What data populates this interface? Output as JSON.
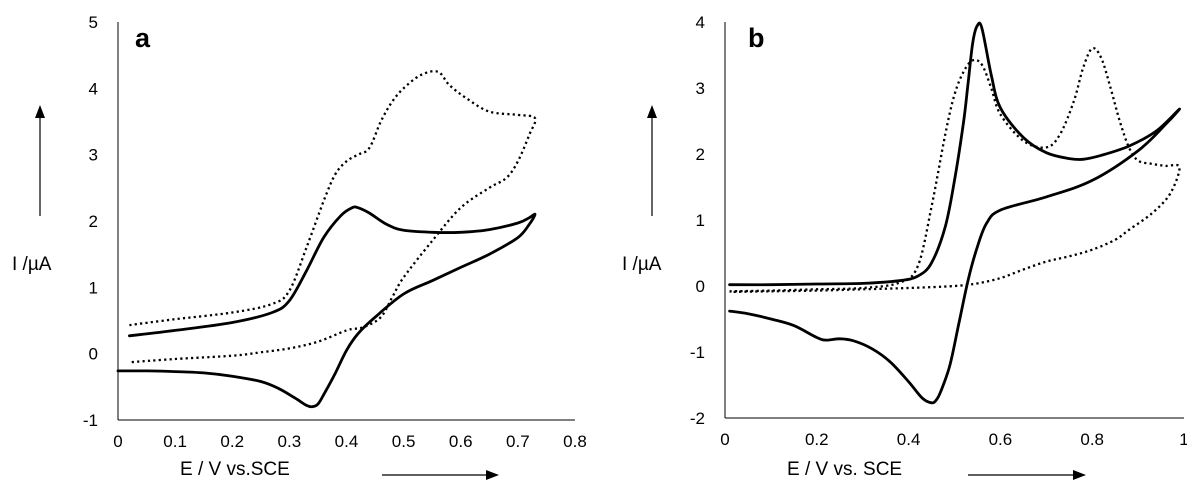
{
  "chart_data": [
    {
      "type": "line",
      "panel_label": "a",
      "xlabel": "E / V vs.SCE",
      "ylabel": "I /µA",
      "xlim": [
        0,
        0.8
      ],
      "ylim": [
        -1,
        5
      ],
      "xticks": [
        0,
        0.1,
        0.2,
        0.3,
        0.4,
        0.5,
        0.6,
        0.7,
        0.8
      ],
      "xtick_labels": [
        "0",
        "0.1",
        "0.2",
        "0.3",
        "0.4",
        "0.5",
        "0.6",
        "0.7",
        "0.8"
      ],
      "yticks": [
        -1,
        0,
        1,
        2,
        3,
        4,
        5
      ],
      "ytick_labels": [
        "-1",
        "0",
        "1",
        "2",
        "3",
        "4",
        "5"
      ],
      "grid": false,
      "legend": false,
      "series": [
        {
          "style": "solid",
          "x": [
            0.02,
            0.1,
            0.2,
            0.27,
            0.3,
            0.33,
            0.36,
            0.39,
            0.41,
            0.42,
            0.44,
            0.47,
            0.5,
            0.55,
            0.6,
            0.65,
            0.7,
            0.72,
            0.73,
            0.72,
            0.7,
            0.65,
            0.6,
            0.55,
            0.5,
            0.45,
            0.42,
            0.4,
            0.38,
            0.36,
            0.35,
            0.34,
            0.33,
            0.31,
            0.28,
            0.25,
            0.2,
            0.15,
            0.1,
            0.05,
            0
          ],
          "y": [
            0.27,
            0.35,
            0.47,
            0.62,
            0.8,
            1.25,
            1.75,
            2.08,
            2.2,
            2.2,
            2.12,
            1.95,
            1.86,
            1.83,
            1.83,
            1.87,
            1.97,
            2.05,
            2.1,
            1.95,
            1.75,
            1.5,
            1.3,
            1.1,
            0.9,
            0.55,
            0.3,
            0.05,
            -0.3,
            -0.62,
            -0.76,
            -0.8,
            -0.78,
            -0.67,
            -0.52,
            -0.42,
            -0.34,
            -0.29,
            -0.27,
            -0.26,
            -0.26
          ]
        },
        {
          "style": "dotted",
          "x": [
            0.02,
            0.1,
            0.2,
            0.27,
            0.3,
            0.33,
            0.36,
            0.38,
            0.4,
            0.42,
            0.44,
            0.46,
            0.48,
            0.5,
            0.53,
            0.56,
            0.58,
            0.61,
            0.65,
            0.7,
            0.73,
            0.72,
            0.7,
            0.68,
            0.65,
            0.6,
            0.55,
            0.5,
            0.48,
            0.46,
            0.43,
            0.4,
            0.35,
            0.3,
            0.25,
            0.2,
            0.1,
            0.02
          ],
          "y": [
            0.43,
            0.52,
            0.62,
            0.75,
            0.95,
            1.6,
            2.3,
            2.7,
            2.9,
            3.0,
            3.1,
            3.5,
            3.8,
            4.0,
            4.2,
            4.25,
            4.05,
            3.85,
            3.65,
            3.6,
            3.55,
            3.3,
            2.9,
            2.65,
            2.5,
            2.2,
            1.7,
            1.15,
            0.85,
            0.55,
            0.4,
            0.35,
            0.18,
            0.08,
            0.02,
            -0.03,
            -0.08,
            -0.13
          ]
        }
      ]
    },
    {
      "type": "line",
      "panel_label": "b",
      "xlabel": "E / V vs. SCE",
      "ylabel": "I /µA",
      "xlim": [
        0,
        1
      ],
      "ylim": [
        -2,
        4
      ],
      "xticks": [
        0,
        0.2,
        0.4,
        0.6,
        0.8,
        1
      ],
      "xtick_labels": [
        "0",
        "0.2",
        "0.4",
        "0.6",
        "0.8",
        "1"
      ],
      "yticks": [
        -2,
        -1,
        0,
        1,
        2,
        3,
        4
      ],
      "ytick_labels": [
        "-2",
        "-1",
        "0",
        "1",
        "2",
        "3",
        "4"
      ],
      "grid": false,
      "legend": false,
      "series": [
        {
          "style": "solid",
          "x": [
            0.01,
            0.1,
            0.2,
            0.3,
            0.38,
            0.42,
            0.45,
            0.48,
            0.5,
            0.52,
            0.53,
            0.54,
            0.55,
            0.56,
            0.58,
            0.6,
            0.65,
            0.7,
            0.75,
            0.78,
            0.82,
            0.88,
            0.94,
            0.99,
            0.96,
            0.9,
            0.8,
            0.7,
            0.6,
            0.57,
            0.55,
            0.53,
            0.51,
            0.49,
            0.47,
            0.46,
            0.45,
            0.43,
            0.4,
            0.36,
            0.32,
            0.28,
            0.25,
            0.22,
            0.2,
            0.15,
            0.1,
            0.05,
            0.01
          ],
          "y": [
            0.02,
            0.02,
            0.03,
            0.04,
            0.08,
            0.15,
            0.35,
            0.9,
            1.6,
            2.5,
            3.1,
            3.7,
            3.95,
            3.9,
            3.2,
            2.7,
            2.25,
            2.02,
            1.93,
            1.92,
            1.98,
            2.12,
            2.35,
            2.68,
            2.45,
            2.05,
            1.6,
            1.35,
            1.15,
            0.95,
            0.6,
            0.1,
            -0.55,
            -1.2,
            -1.6,
            -1.73,
            -1.77,
            -1.7,
            -1.45,
            -1.15,
            -0.95,
            -0.83,
            -0.8,
            -0.82,
            -0.78,
            -0.6,
            -0.5,
            -0.42,
            -0.38
          ]
        },
        {
          "style": "dotted",
          "x": [
            0.01,
            0.1,
            0.2,
            0.3,
            0.38,
            0.42,
            0.45,
            0.48,
            0.5,
            0.52,
            0.54,
            0.56,
            0.58,
            0.6,
            0.65,
            0.7,
            0.73,
            0.76,
            0.78,
            0.8,
            0.82,
            0.84,
            0.86,
            0.88,
            0.9,
            0.93,
            0.96,
            0.99,
            0.97,
            0.93,
            0.88,
            0.85,
            0.8,
            0.75,
            0.7,
            0.65,
            0.6,
            0.55,
            0.5,
            0.4,
            0.3,
            0.2,
            0.1,
            0.01
          ],
          "y": [
            -0.08,
            -0.07,
            -0.05,
            -0.03,
            0.05,
            0.3,
            1.2,
            2.3,
            2.9,
            3.25,
            3.42,
            3.35,
            3.0,
            2.6,
            2.2,
            2.1,
            2.3,
            2.8,
            3.3,
            3.6,
            3.45,
            3.0,
            2.5,
            2.1,
            1.9,
            1.85,
            1.82,
            1.8,
            1.4,
            1.1,
            0.85,
            0.7,
            0.55,
            0.45,
            0.37,
            0.25,
            0.12,
            0.04,
            0.0,
            -0.03,
            -0.05,
            -0.07,
            -0.08,
            -0.09
          ]
        }
      ]
    }
  ]
}
